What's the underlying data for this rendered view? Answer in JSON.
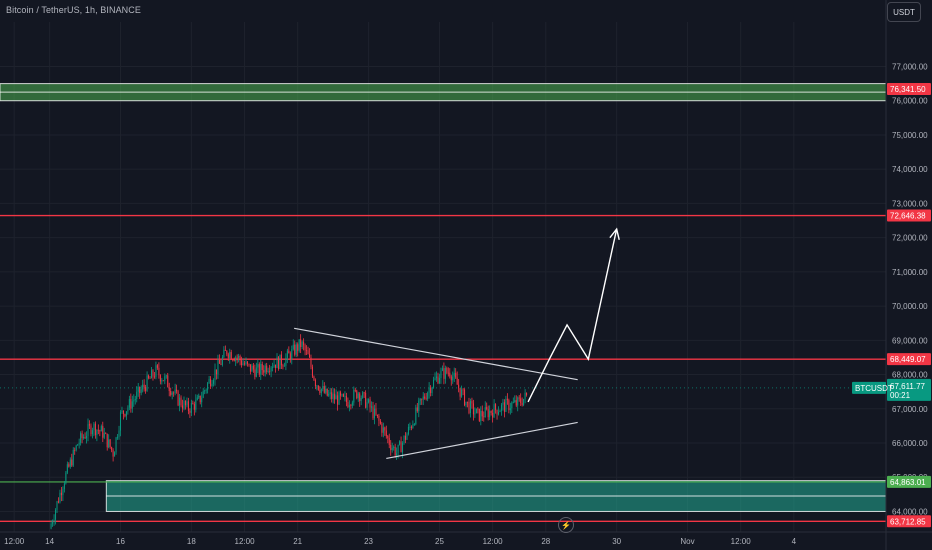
{
  "header": {
    "title": "Bitcoin / TetherUS, 1h, BINANCE",
    "currency_button": "USDT"
  },
  "chart_data": {
    "type": "candlestick",
    "title": "Bitcoin / TetherUS, 1h, BINANCE",
    "symbol": "BTCUSDT",
    "ylim": [
      63400,
      78300
    ],
    "y_ticks": [
      {
        "value": 64000,
        "label": "64,000.00"
      },
      {
        "value": 65000,
        "label": "65,000.00"
      },
      {
        "value": 66000,
        "label": "66,000.00"
      },
      {
        "value": 67000,
        "label": "67,000.00"
      },
      {
        "value": 68000,
        "label": "68,000.00"
      },
      {
        "value": 69000,
        "label": "69,000.00"
      },
      {
        "value": 70000,
        "label": "70,000.00"
      },
      {
        "value": 71000,
        "label": "71,000.00"
      },
      {
        "value": 72000,
        "label": "72,000.00"
      },
      {
        "value": 73000,
        "label": "73,000.00"
      },
      {
        "value": 74000,
        "label": "74,000.00"
      },
      {
        "value": 75000,
        "label": "75,000.00"
      },
      {
        "value": 76000,
        "label": "76,000.00"
      },
      {
        "value": 77000,
        "label": "77,000.00"
      }
    ],
    "x_range_days": [
      12.6,
      37.6
    ],
    "x_ticks": [
      {
        "day": 13.0,
        "label": "12:00"
      },
      {
        "day": 14,
        "label": "14"
      },
      {
        "day": 16,
        "label": "16"
      },
      {
        "day": 18,
        "label": "18"
      },
      {
        "day": 19.5,
        "label": "12:00"
      },
      {
        "day": 21,
        "label": "21"
      },
      {
        "day": 23,
        "label": "23"
      },
      {
        "day": 25,
        "label": "25"
      },
      {
        "day": 26.5,
        "label": "12:00"
      },
      {
        "day": 28,
        "label": "28"
      },
      {
        "day": 30,
        "label": "30"
      },
      {
        "day": 32,
        "label": "Nov"
      },
      {
        "day": 33.5,
        "label": "12:00"
      },
      {
        "day": 35,
        "label": "4"
      }
    ],
    "price_path": [
      [
        14.0,
        63500
      ],
      [
        14.4,
        64900
      ],
      [
        14.8,
        66000
      ],
      [
        15.2,
        66500
      ],
      [
        15.5,
        66300
      ],
      [
        15.8,
        65700
      ],
      [
        16.0,
        66800
      ],
      [
        16.4,
        67300
      ],
      [
        16.7,
        67700
      ],
      [
        17.0,
        68100
      ],
      [
        17.3,
        67800
      ],
      [
        17.6,
        67300
      ],
      [
        17.9,
        67000
      ],
      [
        18.2,
        67200
      ],
      [
        18.5,
        67800
      ],
      [
        18.8,
        68300
      ],
      [
        19.0,
        68700
      ],
      [
        19.3,
        68500
      ],
      [
        19.6,
        68200
      ],
      [
        19.9,
        68100
      ],
      [
        20.2,
        68300
      ],
      [
        20.6,
        68400
      ],
      [
        20.9,
        68700
      ],
      [
        21.1,
        68900
      ],
      [
        21.3,
        68500
      ],
      [
        21.5,
        67800
      ],
      [
        21.8,
        67400
      ],
      [
        22.1,
        67300
      ],
      [
        22.4,
        67200
      ],
      [
        22.7,
        67500
      ],
      [
        23.0,
        67100
      ],
      [
        23.3,
        66600
      ],
      [
        23.6,
        66000
      ],
      [
        23.8,
        65700
      ],
      [
        24.1,
        66300
      ],
      [
        24.4,
        67000
      ],
      [
        24.7,
        67600
      ],
      [
        25.0,
        68000
      ],
      [
        25.3,
        68100
      ],
      [
        25.6,
        67500
      ],
      [
        25.8,
        67100
      ],
      [
        26.1,
        66800
      ],
      [
        26.5,
        66950
      ],
      [
        26.9,
        67100
      ],
      [
        27.2,
        67150
      ],
      [
        27.5,
        67400
      ]
    ],
    "levels": [
      {
        "price": 72646.38,
        "label": "72,646.38",
        "color": "#f23645"
      },
      {
        "price": 68449.07,
        "label": "68,449.07",
        "color": "#f23645"
      },
      {
        "price": 63712.85,
        "label": "63,712.85",
        "color": "#f23645"
      }
    ],
    "zones": [
      {
        "low": 76000,
        "high": 76500,
        "start_day": 12.6,
        "end_day": 37.6,
        "color": "#4caf50",
        "label": "76,341.50",
        "label_color": "#f23645"
      },
      {
        "low": 64000,
        "high": 64900,
        "start_day": 15.6,
        "end_day": 37.6,
        "color": "#22ab94",
        "label": "64,863.01",
        "label_color": "#4caf50"
      },
      {
        "low": 64863.01,
        "high": 64863.01,
        "start_day": 12.6,
        "end_day": 37.6,
        "color": "#4caf50"
      }
    ],
    "trendlines": [
      {
        "from": [
          20.9,
          69350
        ],
        "to": [
          28.9,
          67850
        ],
        "color": "#d1d4dc"
      },
      {
        "from": [
          23.5,
          65550
        ],
        "to": [
          28.9,
          66600
        ],
        "color": "#d1d4dc"
      }
    ],
    "projection": [
      [
        27.5,
        67200
      ],
      [
        28.1,
        68450
      ],
      [
        28.6,
        69450
      ],
      [
        29.2,
        68450
      ],
      [
        30.0,
        72250
      ]
    ],
    "current_price": {
      "price": 67611.77,
      "symbol": "BTCUSDT",
      "label": "67,611.77",
      "countdown": "00:21",
      "color": "#089981"
    }
  }
}
